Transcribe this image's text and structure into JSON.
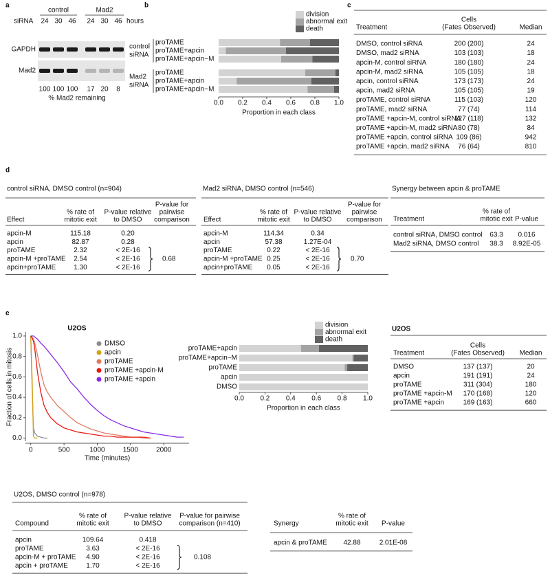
{
  "panel_labels": [
    "a",
    "b",
    "c",
    "d",
    "e"
  ],
  "panel_a": {
    "sirna_label": "siRNA",
    "groups": [
      "control",
      "Mad2"
    ],
    "hours": [
      24,
      30,
      46,
      24,
      30,
      46
    ],
    "hours_label": "hours",
    "blots": [
      "GAPDH",
      "Mad2"
    ],
    "remaining": [
      100,
      100,
      100,
      17,
      20,
      8
    ],
    "remaining_label": "% Mad2 remaining"
  },
  "chart_data": [
    {
      "type": "bar",
      "orientation": "horizontal",
      "stacked": true,
      "xlabel": "Proportion in each class",
      "groups": [
        {
          "label": [
            "control",
            "siRNA"
          ],
          "categories": [
            "proTAME",
            "proTAME+apcin",
            "proTAME+apcin−M"
          ]
        },
        {
          "label": [
            "Mad2",
            "siRNA"
          ],
          "categories": [
            "proTAME",
            "proTAME+apcin",
            "proTAME+apcin−M"
          ]
        }
      ],
      "series": [
        {
          "name": "division",
          "color": "#d3d3d3",
          "values": [
            [
              0.51,
              0.06,
              0.52
            ],
            [
              0.72,
              0.15,
              0.74
            ]
          ]
        },
        {
          "name": "abnormal exit",
          "color": "#a3a3a3",
          "values": [
            [
              0.25,
              0.5,
              0.26
            ],
            [
              0.25,
              0.62,
              0.22
            ]
          ]
        },
        {
          "name": "death",
          "color": "#616161",
          "values": [
            [
              0.24,
              0.44,
              0.22
            ],
            [
              0.03,
              0.23,
              0.04
            ]
          ]
        }
      ],
      "xlim": [
        0,
        1
      ],
      "xticks": [
        {
          "value": 0,
          "label": "0.0"
        },
        0.2,
        0.4,
        0.6,
        0.8,
        {
          "value": 1,
          "label": "1.0"
        }
      ]
    },
    {
      "type": "line",
      "title": "U2OS",
      "xlabel": "Time (minutes)",
      "ylabel": "Fraction of cells in mitosis",
      "x": [
        0,
        20,
        40,
        60,
        100,
        150,
        200,
        250,
        300,
        400,
        500,
        600,
        700,
        800,
        900,
        1000,
        1100,
        1200,
        1300,
        1400,
        1500,
        1600,
        1700,
        1800,
        1900,
        2000,
        2100,
        2200,
        2300
      ],
      "series": [
        {
          "name": "DMSO",
          "color": "#8c8c8c",
          "values": [
            1.0,
            0.5,
            0.1,
            0.05,
            0.02,
            0.01,
            0.0,
            0.0,
            null,
            null,
            null,
            null,
            null,
            null,
            null,
            null,
            null,
            null,
            null,
            null,
            null,
            null,
            null,
            null,
            null,
            null,
            null,
            null,
            null
          ]
        },
        {
          "name": "apcin",
          "color": "#d4a017",
          "values": [
            1.0,
            0.6,
            0.02,
            0.0,
            0.0,
            null,
            null,
            null,
            null,
            null,
            null,
            null,
            null,
            null,
            null,
            null,
            null,
            null,
            null,
            null,
            null,
            null,
            null,
            null,
            null,
            null,
            null,
            null,
            null
          ]
        },
        {
          "name": "proTAME",
          "color": "#e07a5f",
          "values": [
            1.0,
            0.99,
            0.97,
            0.93,
            0.82,
            0.65,
            0.52,
            0.45,
            0.4,
            0.32,
            0.26,
            0.2,
            0.15,
            0.12,
            0.09,
            0.07,
            0.05,
            0.04,
            0.03,
            0.02,
            0.01,
            0.01,
            0.0,
            0.0,
            null,
            null,
            null,
            null,
            null
          ]
        },
        {
          "name": "proTAME +apcin-M",
          "color": "#e8190f",
          "values": [
            1.0,
            0.98,
            0.95,
            0.88,
            0.65,
            0.45,
            0.32,
            0.25,
            0.2,
            0.14,
            0.1,
            0.08,
            0.06,
            0.05,
            0.04,
            0.03,
            0.02,
            0.02,
            0.01,
            0.01,
            0.01,
            0.01,
            0.01,
            0.0,
            null,
            null,
            null,
            null,
            null
          ]
        },
        {
          "name": "proTAME +apcin",
          "color": "#8a2be2",
          "values": [
            1.0,
            1.0,
            1.0,
            0.99,
            0.97,
            0.93,
            0.9,
            0.86,
            0.82,
            0.74,
            0.65,
            0.55,
            0.48,
            0.4,
            0.33,
            0.27,
            0.22,
            0.18,
            0.15,
            0.12,
            0.1,
            0.08,
            0.06,
            0.05,
            0.04,
            0.03,
            0.02,
            0.01,
            0.01
          ]
        }
      ],
      "xlim": [
        -80,
        2380
      ],
      "xticks": [
        0,
        500,
        1000,
        1500,
        2000
      ],
      "ylim": [
        -0.03,
        1.04
      ],
      "yticks": [
        {
          "value": 0,
          "label": "0.0"
        },
        0.2,
        0.4,
        0.6,
        0.8,
        {
          "value": 1,
          "label": "1.0"
        }
      ]
    },
    {
      "type": "bar",
      "orientation": "horizontal",
      "stacked": true,
      "xlabel": "Proportion in each class",
      "categories": [
        "proTAME+apcin",
        "proTAME+apcin−M",
        "proTAME",
        "apcin",
        "DMSO"
      ],
      "series": [
        {
          "name": "division",
          "color": "#d3d3d3",
          "values": [
            0.48,
            0.88,
            0.82,
            1.0,
            1.0
          ]
        },
        {
          "name": "abnormal exit",
          "color": "#a3a3a3",
          "values": [
            0.14,
            0.01,
            0.02,
            0,
            0
          ]
        },
        {
          "name": "death",
          "color": "#616161",
          "values": [
            0.38,
            0.11,
            0.16,
            0,
            0
          ]
        }
      ],
      "xlim": [
        0,
        1
      ],
      "xticks": [
        {
          "value": 0,
          "label": "0.0"
        },
        0.2,
        0.4,
        0.6,
        0.8,
        {
          "value": 1,
          "label": "1.0"
        }
      ]
    }
  ],
  "table_c": {
    "columns": [
      [
        "Treatment"
      ],
      [
        "Cells",
        "(Fates Observed)"
      ],
      [
        "Median"
      ]
    ],
    "rows": [
      [
        "DMSO, control siRNA",
        "200 (200)",
        24
      ],
      [
        "DMSO, mad2 siRNA",
        "103 (103)",
        18
      ],
      [
        "apcin-M, control siRNA",
        "180 (180)",
        24
      ],
      [
        "apcin-M, mad2 siRNA",
        "105 (105)",
        18
      ],
      [
        "apcin, control siRNA",
        "173 (173)",
        24
      ],
      [
        "apcin, mad2 siRNA",
        "105 (105)",
        19
      ],
      [
        "proTAME, control siRNA",
        "115 (103)",
        120
      ],
      [
        "proTAME, mad2 siRNA",
        "77 (74)",
        114
      ],
      [
        "proTAME +apcin-M, control siRNA",
        "127 (118)",
        132
      ],
      [
        "proTAME +apcin-M, mad2 siRNA",
        "80 (78)",
        84
      ],
      [
        "proTAME +apcin, control siRNA",
        "109 (86)",
        942
      ],
      [
        "proTAME +apcin, mad2 siRNA",
        "76 (64)",
        810
      ]
    ]
  },
  "tables_d": [
    {
      "title": "control siRNA, DMSO control (n=904)",
      "columns": [
        [
          "Effect"
        ],
        [
          "% rate of",
          "mitotic exit"
        ],
        [
          "P-value relative",
          "to DMSO"
        ],
        [
          "P-value for",
          "pairwise",
          "comparison"
        ]
      ],
      "rows": [
        [
          "apcin-M",
          "115.18",
          "0.20"
        ],
        [
          "apcin",
          "82.87",
          "0.28"
        ],
        [
          "proTAME",
          "2.32",
          "< 2E-16"
        ],
        [
          "apcin-M +proTAME",
          "2.54",
          "< 2E-16"
        ],
        [
          "apcin+proTAME",
          "1.30",
          "< 2E-16"
        ]
      ],
      "pairwise": "0.68"
    },
    {
      "title": "Mad2 siRNA, DMSO control (n=546)",
      "columns": [
        [
          "Effect"
        ],
        [
          "% rate of",
          "mitotic exit"
        ],
        [
          "P-value relative",
          "to DMSO"
        ],
        [
          "P-value for",
          "pairwise",
          "comparison"
        ]
      ],
      "rows": [
        [
          "apcin-M",
          "114.34",
          "0.34"
        ],
        [
          "apcin",
          "57.38",
          "1.27E-04"
        ],
        [
          "proTAME",
          "0.22",
          "< 2E-16"
        ],
        [
          "apcin-M +proTAME",
          "0.25",
          "< 2E-16"
        ],
        [
          "apcin+proTAME",
          "0.05",
          "< 2E-16"
        ]
      ],
      "pairwise": "0.70"
    },
    {
      "title": "Synergy between apcin & proTAME",
      "columns": [
        [
          "Treatment"
        ],
        [
          "% rate of",
          "mitotic exit"
        ],
        [
          "P-value"
        ]
      ],
      "rows": [
        [
          "control siRNA, DMSO control",
          "63.3",
          "0.016"
        ],
        [
          "Mad2 siRNA, DMSO control",
          "38.3",
          "8.92E-05"
        ]
      ]
    }
  ],
  "table_e": {
    "title": "U2OS",
    "columns": [
      [
        "Treatment"
      ],
      [
        "Cells",
        "(Fates Observed)"
      ],
      [
        "Median"
      ]
    ],
    "rows": [
      [
        "DMSO",
        "137 (137)",
        20
      ],
      [
        "apcin",
        "191 (191)",
        24
      ],
      [
        "proTAME",
        "311 (304)",
        180
      ],
      [
        "proTAME +apcin-M",
        "170 (168)",
        120
      ],
      [
        "proTAME +apcin",
        "169 (163)",
        660
      ]
    ]
  },
  "table_u2os": {
    "title": "U2OS, DMSO control (n=978)",
    "columns": [
      [
        "Compound"
      ],
      [
        "% rate of",
        "mitotic exit"
      ],
      [
        "P-value relative",
        "to DMSO"
      ],
      [
        "P-value for pairwise",
        "comparison (n=410)"
      ]
    ],
    "rows": [
      [
        "apcin",
        "109.64",
        "0.418"
      ],
      [
        "proTAME",
        "3.63",
        "< 2E-16"
      ],
      [
        "apcin-M + proTAME",
        "4.90",
        "< 2E-16"
      ],
      [
        "apcin + proTAME",
        "1.70",
        "< 2E-16"
      ]
    ],
    "pairwise": "0.108"
  },
  "table_synergy": {
    "columns": [
      [
        "Synergy"
      ],
      [
        "% rate of",
        "mitotic exit"
      ],
      [
        "P-value"
      ]
    ],
    "rows": [
      [
        "apcin & proTAME",
        "42.88",
        "2.01E-08"
      ]
    ]
  }
}
